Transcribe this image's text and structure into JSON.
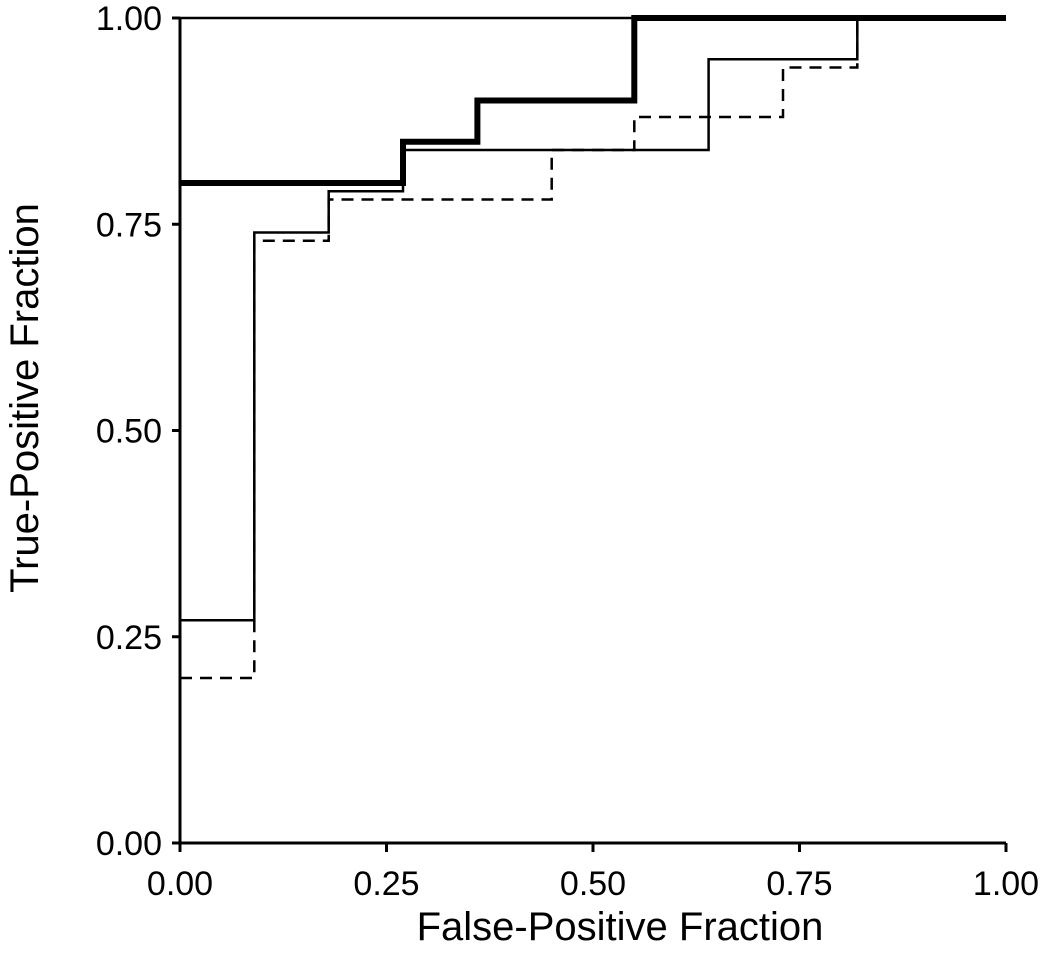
{
  "chart_data": {
    "type": "line",
    "title": "",
    "xlabel": "False-Positive Fraction",
    "ylabel": "True-Positive Fraction",
    "xlim": [
      0,
      1
    ],
    "ylim": [
      0,
      1
    ],
    "x_ticks": [
      "0.00",
      "0.25",
      "0.50",
      "0.75",
      "1.00"
    ],
    "y_ticks": [
      "0.00",
      "0.25",
      "0.50",
      "0.75",
      "1.00"
    ],
    "grid": false,
    "legend": "none",
    "series": [
      {
        "style": "thick-solid",
        "color": "#000000",
        "points": [
          [
            0,
            0.8
          ],
          [
            0.27,
            0.8
          ],
          [
            0.27,
            0.85
          ],
          [
            0.36,
            0.85
          ],
          [
            0.36,
            0.9
          ],
          [
            0.55,
            0.9
          ],
          [
            0.55,
            1.0
          ],
          [
            1.0,
            1.0
          ]
        ]
      },
      {
        "style": "thin-solid",
        "color": "#000000",
        "points": [
          [
            0,
            0.27
          ],
          [
            0.09,
            0.27
          ],
          [
            0.09,
            0.74
          ],
          [
            0.18,
            0.74
          ],
          [
            0.18,
            0.79
          ],
          [
            0.27,
            0.79
          ],
          [
            0.27,
            0.84
          ],
          [
            0.64,
            0.84
          ],
          [
            0.64,
            0.95
          ],
          [
            0.82,
            0.95
          ],
          [
            0.82,
            1.0
          ],
          [
            1.0,
            1.0
          ]
        ]
      },
      {
        "style": "dashed",
        "color": "#000000",
        "points": [
          [
            0,
            0.2
          ],
          [
            0.09,
            0.2
          ],
          [
            0.09,
            0.73
          ],
          [
            0.18,
            0.73
          ],
          [
            0.18,
            0.78
          ],
          [
            0.45,
            0.78
          ],
          [
            0.45,
            0.84
          ],
          [
            0.55,
            0.84
          ],
          [
            0.55,
            0.88
          ],
          [
            0.73,
            0.88
          ],
          [
            0.73,
            0.94
          ],
          [
            0.82,
            0.94
          ],
          [
            0.82,
            1.0
          ],
          [
            1.0,
            1.0
          ]
        ]
      },
      {
        "style": "reference",
        "color": "#000000",
        "points": [
          [
            0,
            1.0
          ],
          [
            1.0,
            1.0
          ]
        ]
      }
    ]
  }
}
